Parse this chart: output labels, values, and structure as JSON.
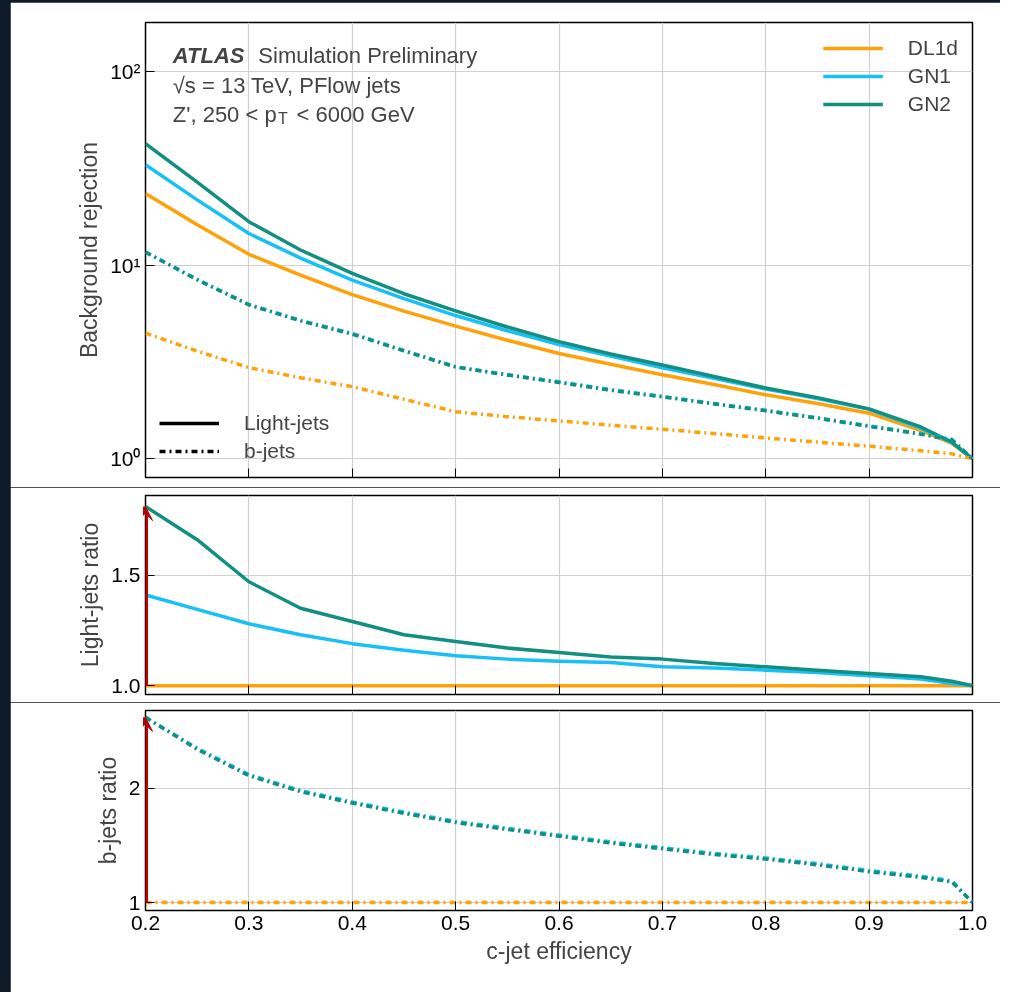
{
  "chart_data": [
    {
      "type": "line",
      "ylabel": "Background rejection",
      "log": "y",
      "grid": true,
      "legend": "top right",
      "tick_labels": "y",
      "annotations": [
        "ATLAS Simulation Preliminary",
        "√s = 13 TeV, PFlow jets",
        "Z', 250 < p$_{T}$ < 6000 GeV",
        "Light-jets",
        "b-jets"
      ],
      "xlim": [
        0.2,
        1.0
      ],
      "xticks": [
        0.2,
        0.3,
        0.4,
        0.5,
        0.6,
        0.7,
        0.8,
        0.9,
        1.0
      ],
      "ylim": [
        0.8,
        180
      ],
      "yticks": [
        {
          "value": 1,
          "label": "10⁰"
        },
        {
          "value": 10,
          "label": "10¹"
        },
        {
          "value": 100,
          "label": "10²"
        }
      ],
      "x": [
        0.2,
        0.25,
        0.3,
        0.35,
        0.4,
        0.45,
        0.5,
        0.55,
        0.6,
        0.65,
        0.7,
        0.75,
        0.8,
        0.85,
        0.9,
        0.95,
        0.98,
        1.0
      ],
      "series": [
        {
          "name": "DL1d",
          "color": "#ffa20a",
          "line_style": "solid",
          "values": [
            23.5,
            16.2,
            11.4,
            8.9,
            7.05,
            5.8,
            4.85,
            4.1,
            3.5,
            3.08,
            2.72,
            2.42,
            2.14,
            1.93,
            1.72,
            1.4,
            1.2,
            1.0
          ]
        },
        {
          "name": "GN1",
          "color": "#19c0f5",
          "line_style": "solid",
          "values": [
            33.1,
            21.8,
            14.6,
            10.9,
            8.39,
            6.73,
            5.5,
            4.59,
            3.89,
            3.4,
            2.95,
            2.61,
            2.29,
            2.05,
            1.8,
            1.44,
            1.21,
            1.0
          ]
        },
        {
          "name": "GN2",
          "color": "#128f80",
          "line_style": "solid",
          "values": [
            42.5,
            26.9,
            16.8,
            12.0,
            9.09,
            7.13,
            5.82,
            4.8,
            4.03,
            3.48,
            3.05,
            2.66,
            2.32,
            2.07,
            1.81,
            1.46,
            1.22,
            1.0
          ]
        },
        {
          "color": "#ffa20a",
          "line_style": "dashdot",
          "values": [
            4.46,
            3.6,
            2.96,
            2.62,
            2.36,
            2.03,
            1.75,
            1.65,
            1.57,
            1.49,
            1.42,
            1.35,
            1.28,
            1.22,
            1.16,
            1.1,
            1.06,
            1.0
          ]
        },
        {
          "color": "#19c0f5",
          "line_style": "dashdot",
          "values": [
            11.7,
            8.46,
            6.28,
            5.19,
            4.44,
            3.63,
            2.99,
            2.72,
            2.5,
            2.28,
            2.1,
            1.93,
            1.78,
            1.63,
            1.48,
            1.35,
            1.26,
            1.0
          ]
        },
        {
          "color": "#128f80",
          "line_style": "dashdot",
          "values": [
            11.7,
            8.42,
            6.25,
            5.16,
            4.41,
            3.61,
            2.98,
            2.71,
            2.48,
            2.26,
            2.09,
            1.92,
            1.77,
            1.62,
            1.47,
            1.34,
            1.25,
            1.0
          ]
        }
      ]
    },
    {
      "type": "line",
      "ylabel": "Light-jets ratio",
      "grid": true,
      "tick_labels": "y",
      "xlim": [
        0.2,
        1.0
      ],
      "xticks": [
        0.2,
        0.3,
        0.4,
        0.5,
        0.6,
        0.7,
        0.8,
        0.9,
        1.0
      ],
      "ylim": [
        0.96,
        1.86
      ],
      "yticks": [
        {
          "value": 1,
          "label": "1.0"
        },
        1.5
      ],
      "x": [
        0.2,
        0.25,
        0.3,
        0.35,
        0.4,
        0.45,
        0.5,
        0.55,
        0.6,
        0.65,
        0.7,
        0.75,
        0.8,
        0.85,
        0.9,
        0.95,
        0.98,
        1.0
      ],
      "series": [
        {
          "color": "#ffa20a",
          "line_style": "solid",
          "values": [
            1,
            1,
            1,
            1,
            1,
            1,
            1,
            1,
            1,
            1,
            1,
            1,
            1,
            1,
            1,
            1,
            1,
            1
          ]
        },
        {
          "color": "#19c0f5",
          "line_style": "solid",
          "values": [
            1.41,
            1.345,
            1.28,
            1.23,
            1.19,
            1.16,
            1.135,
            1.12,
            1.11,
            1.105,
            1.085,
            1.08,
            1.07,
            1.06,
            1.045,
            1.03,
            1.01,
            1.0
          ]
        },
        {
          "color": "#128f80",
          "line_style": "solid",
          "values": [
            1.81,
            1.66,
            1.47,
            1.35,
            1.29,
            1.23,
            1.2,
            1.17,
            1.15,
            1.13,
            1.12,
            1.1,
            1.085,
            1.07,
            1.055,
            1.04,
            1.02,
            1.0
          ]
        }
      ]
    },
    {
      "type": "line",
      "ylabel": "b-jets ratio",
      "xlabel": "c-jet efficiency",
      "grid": true,
      "xlim": [
        0.2,
        1.0
      ],
      "xticks": [
        0.2,
        0.3,
        0.4,
        0.5,
        0.6,
        0.7,
        0.8,
        0.9,
        {
          "value": 1,
          "label": "1.0"
        }
      ],
      "ylim": [
        0.93,
        2.68
      ],
      "yticks": [
        1,
        2
      ],
      "x": [
        0.2,
        0.25,
        0.3,
        0.35,
        0.4,
        0.45,
        0.5,
        0.55,
        0.6,
        0.65,
        0.7,
        0.75,
        0.8,
        0.85,
        0.9,
        0.95,
        0.98,
        1.0
      ],
      "series": [
        {
          "color": "#ffa20a",
          "line_style": "dashdot",
          "values": [
            1,
            1,
            1,
            1,
            1,
            1,
            1,
            1,
            1,
            1,
            1,
            1,
            1,
            1,
            1,
            1,
            1,
            1
          ]
        },
        {
          "color": "#19c0f5",
          "line_style": "dashdot",
          "values": [
            2.62,
            2.35,
            2.12,
            1.98,
            1.88,
            1.79,
            1.71,
            1.65,
            1.59,
            1.53,
            1.48,
            1.43,
            1.39,
            1.34,
            1.28,
            1.23,
            1.19,
            1.0
          ]
        },
        {
          "color": "#128f80",
          "line_style": "dashdot",
          "values": [
            2.62,
            2.34,
            2.11,
            1.97,
            1.87,
            1.78,
            1.7,
            1.64,
            1.58,
            1.52,
            1.47,
            1.42,
            1.38,
            1.33,
            1.27,
            1.22,
            1.18,
            1.0
          ]
        }
      ]
    }
  ]
}
